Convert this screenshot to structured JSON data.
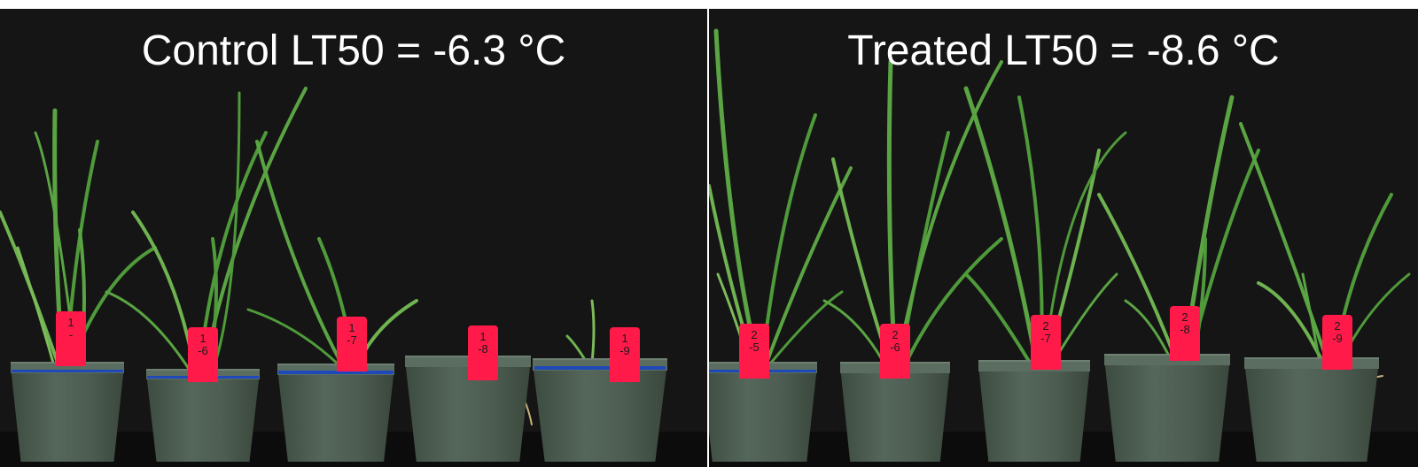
{
  "panels": [
    {
      "title": "Control LT50 = -6.3 °C",
      "pots": [
        {
          "tag_line1": "1",
          "tag_line2": "-",
          "blue_tape": true
        },
        {
          "tag_line1": "1",
          "tag_line2": "-6",
          "blue_tape": true
        },
        {
          "tag_line1": "1",
          "tag_line2": "-7",
          "blue_tape": true
        },
        {
          "tag_line1": "1",
          "tag_line2": "-8",
          "blue_tape": false
        },
        {
          "tag_line1": "1",
          "tag_line2": "-9",
          "blue_tape": true
        }
      ]
    },
    {
      "title": "Treated LT50 = -8.6 °C",
      "pots": [
        {
          "tag_line1": "2",
          "tag_line2": "-5",
          "blue_tape": true
        },
        {
          "tag_line1": "2",
          "tag_line2": "-6",
          "blue_tape": false
        },
        {
          "tag_line1": "2",
          "tag_line2": "-7",
          "blue_tape": false
        },
        {
          "tag_line1": "2",
          "tag_line2": "-8",
          "blue_tape": false
        },
        {
          "tag_line1": "2",
          "tag_line2": "-9",
          "blue_tape": false
        }
      ]
    }
  ],
  "colors": {
    "background": "#151515",
    "leaf": "#4f9a3a",
    "leaf_light": "#7dbb5a",
    "dry_leaf": "#c8b27a",
    "label": "#ff1a4a",
    "tape": "#1f49b8",
    "pot": "#4c5c50"
  }
}
